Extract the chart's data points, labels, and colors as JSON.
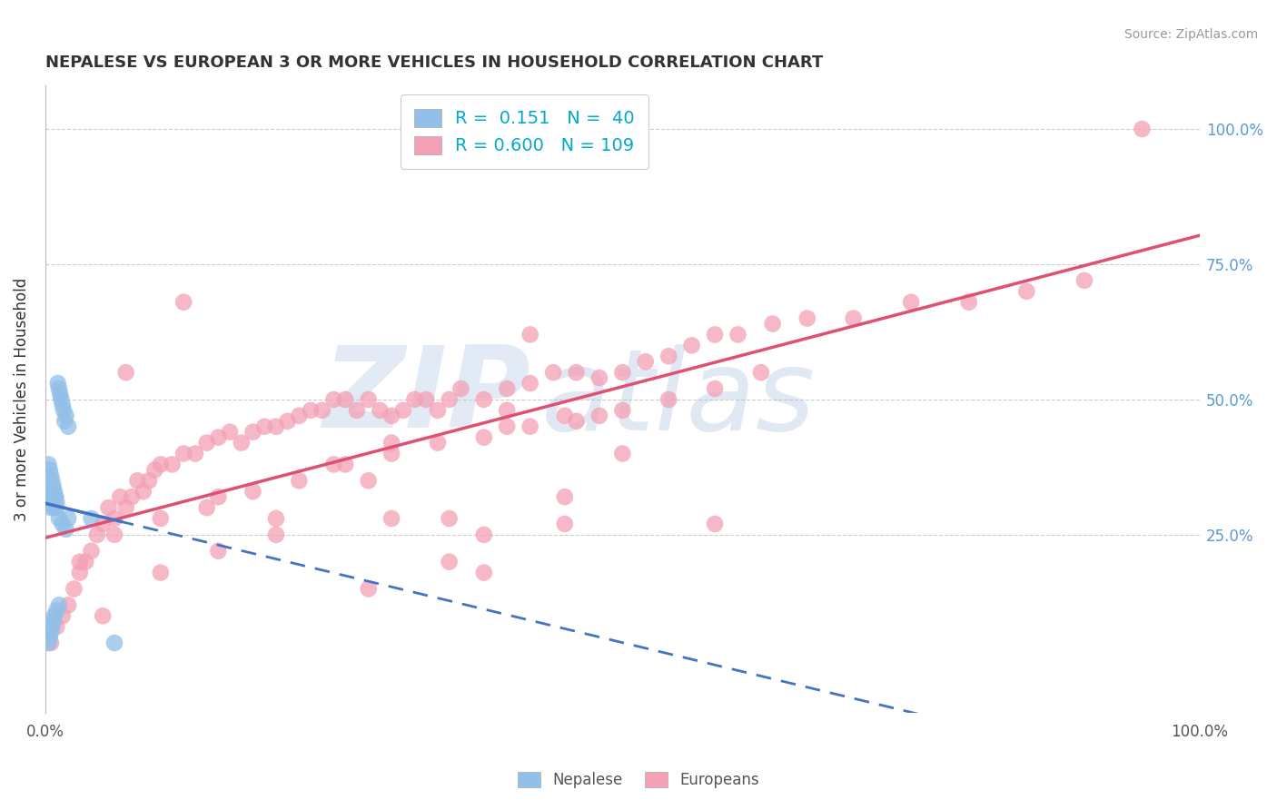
{
  "title": "NEPALESE VS EUROPEAN 3 OR MORE VEHICLES IN HOUSEHOLD CORRELATION CHART",
  "source": "Source: ZipAtlas.com",
  "ylabel": "3 or more Vehicles in Household",
  "xlim": [
    0,
    1
  ],
  "ylim": [
    -0.08,
    1.08
  ],
  "y_ticks_right": [
    0.25,
    0.5,
    0.75,
    1.0
  ],
  "y_tick_labels_right": [
    "25.0%",
    "50.0%",
    "75.0%",
    "100.0%"
  ],
  "nepalese_color": "#92C0E8",
  "european_color": "#F4A0B5",
  "nepalese_line_color": "#4472C4",
  "european_line_color": "#E05070",
  "nepalese_R": 0.151,
  "nepalese_N": 40,
  "european_R": 0.6,
  "european_N": 109,
  "legend_label_nepalese": "Nepalese",
  "legend_label_european": "Europeans",
  "watermark_zip": "ZIP",
  "watermark_atlas": "atlas",
  "background_color": "#ffffff",
  "nepalese_x": [
    0.002,
    0.003,
    0.004,
    0.005,
    0.006,
    0.007,
    0.008,
    0.009,
    0.01,
    0.011,
    0.012,
    0.013,
    0.014,
    0.015,
    0.016,
    0.017,
    0.018,
    0.02,
    0.003,
    0.004,
    0.005,
    0.006,
    0.007,
    0.008,
    0.009,
    0.01,
    0.012,
    0.015,
    0.018,
    0.02,
    0.003,
    0.004,
    0.005,
    0.006,
    0.007,
    0.008,
    0.01,
    0.012,
    0.04,
    0.06
  ],
  "nepalese_y": [
    0.33,
    0.31,
    0.32,
    0.3,
    0.31,
    0.33,
    0.3,
    0.32,
    0.31,
    0.53,
    0.52,
    0.51,
    0.5,
    0.49,
    0.48,
    0.46,
    0.47,
    0.45,
    0.38,
    0.37,
    0.36,
    0.35,
    0.34,
    0.33,
    0.32,
    0.3,
    0.28,
    0.27,
    0.26,
    0.28,
    0.05,
    0.06,
    0.07,
    0.08,
    0.09,
    0.1,
    0.11,
    0.12,
    0.28,
    0.05
  ],
  "european_x": [
    0.005,
    0.01,
    0.015,
    0.02,
    0.025,
    0.03,
    0.035,
    0.04,
    0.045,
    0.05,
    0.055,
    0.06,
    0.065,
    0.07,
    0.075,
    0.08,
    0.085,
    0.09,
    0.095,
    0.1,
    0.11,
    0.12,
    0.13,
    0.14,
    0.15,
    0.16,
    0.17,
    0.18,
    0.19,
    0.2,
    0.21,
    0.22,
    0.23,
    0.24,
    0.25,
    0.26,
    0.27,
    0.28,
    0.29,
    0.3,
    0.31,
    0.32,
    0.33,
    0.34,
    0.35,
    0.36,
    0.38,
    0.4,
    0.42,
    0.44,
    0.46,
    0.48,
    0.5,
    0.52,
    0.54,
    0.56,
    0.58,
    0.6,
    0.63,
    0.66,
    0.7,
    0.75,
    0.8,
    0.85,
    0.9,
    0.95,
    0.03,
    0.06,
    0.1,
    0.14,
    0.18,
    0.22,
    0.26,
    0.3,
    0.34,
    0.38,
    0.42,
    0.46,
    0.5,
    0.54,
    0.58,
    0.62,
    0.05,
    0.1,
    0.15,
    0.2,
    0.25,
    0.3,
    0.4,
    0.45,
    0.35,
    0.28,
    0.15,
    0.2,
    0.07,
    0.12,
    0.4,
    0.48,
    0.5,
    0.42,
    0.38,
    0.3,
    0.45,
    0.38,
    0.58,
    0.45,
    0.35,
    0.28
  ],
  "european_y": [
    0.05,
    0.08,
    0.1,
    0.12,
    0.15,
    0.18,
    0.2,
    0.22,
    0.25,
    0.27,
    0.3,
    0.28,
    0.32,
    0.3,
    0.32,
    0.35,
    0.33,
    0.35,
    0.37,
    0.38,
    0.38,
    0.4,
    0.4,
    0.42,
    0.43,
    0.44,
    0.42,
    0.44,
    0.45,
    0.45,
    0.46,
    0.47,
    0.48,
    0.48,
    0.5,
    0.5,
    0.48,
    0.5,
    0.48,
    0.47,
    0.48,
    0.5,
    0.5,
    0.48,
    0.5,
    0.52,
    0.5,
    0.52,
    0.53,
    0.55,
    0.55,
    0.54,
    0.55,
    0.57,
    0.58,
    0.6,
    0.62,
    0.62,
    0.64,
    0.65,
    0.65,
    0.68,
    0.68,
    0.7,
    0.72,
    1.0,
    0.2,
    0.25,
    0.28,
    0.3,
    0.33,
    0.35,
    0.38,
    0.4,
    0.42,
    0.43,
    0.45,
    0.46,
    0.48,
    0.5,
    0.52,
    0.55,
    0.1,
    0.18,
    0.22,
    0.28,
    0.38,
    0.42,
    0.45,
    0.47,
    0.28,
    0.35,
    0.32,
    0.25,
    0.55,
    0.68,
    0.48,
    0.47,
    0.4,
    0.62,
    0.25,
    0.28,
    0.27,
    0.18,
    0.27,
    0.32,
    0.2,
    0.15
  ]
}
